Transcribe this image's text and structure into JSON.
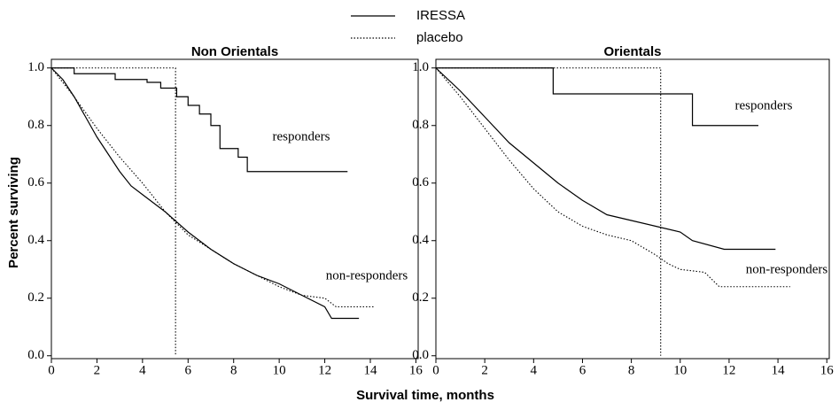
{
  "chart_data": [
    {
      "type": "line",
      "title": "Non Orientals",
      "ylabel": "Percent surviving",
      "xlabel": "Survival time, months",
      "xlim": [
        0,
        16.1
      ],
      "ylim": [
        -0.01,
        1.03
      ],
      "xticks": [
        0,
        2,
        4,
        6,
        8,
        10,
        12,
        14,
        16
      ],
      "yticks": [
        {
          "value": 0,
          "label": "0.0"
        },
        0.2,
        0.4,
        0.6,
        0.8,
        {
          "value": 1,
          "label": "1.0"
        }
      ],
      "annotations": [
        "responders",
        "non-responders"
      ],
      "series": [
        {
          "name": "IRESSA",
          "color": "#000000",
          "style": "solid",
          "x": [
            0,
            1,
            1,
            2.8,
            2.8,
            4.2,
            4.2,
            4.8,
            4.8,
            5.5,
            5.5,
            6,
            6,
            6.5,
            6.5,
            7,
            7,
            7.4,
            7.4,
            8.2,
            8.2,
            8.6,
            8.6,
            13
          ],
          "values": [
            1,
            1,
            0.98,
            0.98,
            0.96,
            0.96,
            0.95,
            0.95,
            0.93,
            0.93,
            0.9,
            0.9,
            0.87,
            0.87,
            0.84,
            0.84,
            0.8,
            0.8,
            0.72,
            0.72,
            0.69,
            0.69,
            0.64,
            0.64
          ]
        },
        {
          "name": "placebo",
          "color": "#000000",
          "style": "dotted",
          "x": [
            0,
            5.45,
            5.45
          ],
          "values": [
            1,
            1,
            0
          ]
        },
        {
          "color": "#000000",
          "style": "solid",
          "x": [
            0,
            0.5,
            1,
            1.5,
            2,
            2.5,
            3,
            3.5,
            4,
            5,
            6,
            7,
            8,
            9,
            10,
            11,
            12,
            12.3,
            13.5
          ],
          "values": [
            1,
            0.96,
            0.9,
            0.83,
            0.76,
            0.7,
            0.64,
            0.59,
            0.56,
            0.5,
            0.43,
            0.37,
            0.32,
            0.28,
            0.25,
            0.21,
            0.17,
            0.13,
            0.13
          ]
        },
        {
          "color": "#000000",
          "style": "dotted",
          "x": [
            0,
            1,
            2,
            3,
            4,
            5,
            6,
            7,
            8,
            9,
            10,
            11,
            12,
            12.5,
            14.2
          ],
          "values": [
            1,
            0.9,
            0.79,
            0.69,
            0.6,
            0.5,
            0.42,
            0.37,
            0.32,
            0.28,
            0.24,
            0.21,
            0.2,
            0.17,
            0.17
          ]
        }
      ]
    },
    {
      "type": "line",
      "title": "Orientals",
      "xlim": [
        0,
        16.1
      ],
      "ylim": [
        -0.01,
        1.03
      ],
      "xticks": [
        0,
        2,
        4,
        6,
        8,
        10,
        12,
        14,
        16
      ],
      "yticks": [
        {
          "value": 0,
          "label": "0.0"
        },
        0.2,
        0.4,
        0.6,
        0.8,
        {
          "value": 1,
          "label": "1.0"
        }
      ],
      "annotations": [
        "responders",
        "non-responders"
      ],
      "series": [
        {
          "color": "#000000",
          "style": "solid",
          "x": [
            0,
            4.8,
            4.8,
            10.5,
            10.5,
            13.2
          ],
          "values": [
            1,
            1,
            0.91,
            0.91,
            0.8,
            0.8
          ]
        },
        {
          "color": "#000000",
          "style": "dotted",
          "x": [
            0,
            9.2,
            9.2
          ],
          "values": [
            1,
            1,
            0
          ]
        },
        {
          "color": "#000000",
          "style": "solid",
          "x": [
            0,
            1,
            2,
            3,
            4,
            5,
            6,
            7,
            8,
            9,
            10,
            10.5,
            11.8,
            13.9
          ],
          "values": [
            1,
            0.92,
            0.83,
            0.74,
            0.67,
            0.6,
            0.54,
            0.49,
            0.47,
            0.45,
            0.43,
            0.4,
            0.37,
            0.37
          ]
        },
        {
          "color": "#000000",
          "style": "dotted",
          "x": [
            0,
            1,
            2,
            3,
            4,
            5,
            6,
            7,
            8,
            9,
            9.5,
            10,
            11,
            11.6,
            14.5
          ],
          "values": [
            1,
            0.9,
            0.79,
            0.68,
            0.58,
            0.5,
            0.45,
            0.42,
            0.4,
            0.35,
            0.32,
            0.3,
            0.29,
            0.24,
            0.24
          ]
        }
      ]
    }
  ]
}
